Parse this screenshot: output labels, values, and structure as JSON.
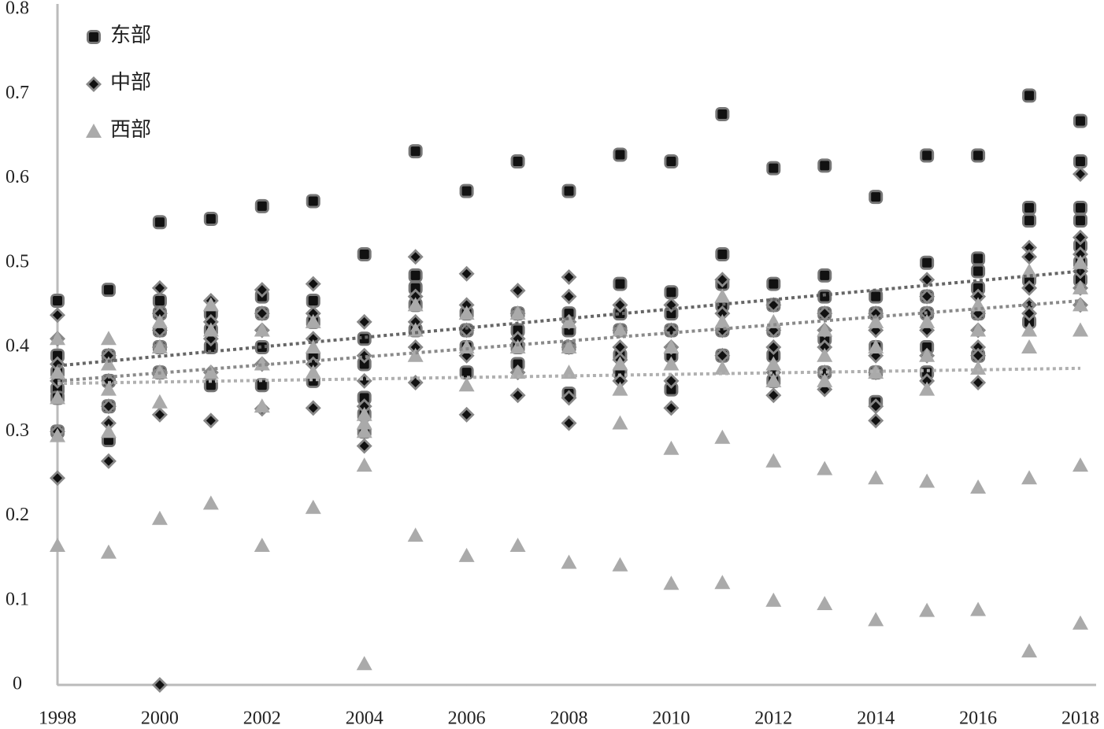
{
  "chart_data": {
    "type": "scatter",
    "xlim": [
      1998,
      2018
    ],
    "xticks": [
      1998,
      2000,
      2002,
      2004,
      2006,
      2008,
      2010,
      2012,
      2014,
      2016,
      2018
    ],
    "ylim": [
      0,
      0.8
    ],
    "yticks": [
      0,
      0.1,
      0.2,
      0.3,
      0.4,
      0.5,
      0.6,
      0.7,
      0.8
    ],
    "legend": "top-left",
    "series": [
      {
        "name": "东部",
        "color": "#111111",
        "marker": "square",
        "trendline": [
          0.378,
          0.49
        ],
        "x": [
          1998,
          1998,
          1998,
          1998,
          1998,
          1998,
          1999,
          1999,
          1999,
          1999,
          1999,
          2000,
          2000,
          2000,
          2000,
          2000,
          2000,
          2001,
          2001,
          2001,
          2001,
          2001,
          2002,
          2002,
          2002,
          2002,
          2002,
          2003,
          2003,
          2003,
          2003,
          2003,
          2004,
          2004,
          2004,
          2004,
          2004,
          2004,
          2005,
          2005,
          2005,
          2005,
          2005,
          2006,
          2006,
          2006,
          2006,
          2006,
          2007,
          2007,
          2007,
          2007,
          2007,
          2008,
          2008,
          2008,
          2008,
          2008,
          2009,
          2009,
          2009,
          2009,
          2009,
          2009,
          2010,
          2010,
          2010,
          2010,
          2010,
          2010,
          2011,
          2011,
          2011,
          2011,
          2011,
          2011,
          2012,
          2012,
          2012,
          2012,
          2012,
          2012,
          2013,
          2013,
          2013,
          2013,
          2013,
          2013,
          2014,
          2014,
          2014,
          2014,
          2014,
          2014,
          2015,
          2015,
          2015,
          2015,
          2015,
          2015,
          2016,
          2016,
          2016,
          2016,
          2016,
          2016,
          2017,
          2017,
          2017,
          2017,
          2017,
          2018,
          2018,
          2018,
          2018,
          2018,
          2018,
          2018
        ],
        "values": [
          0.455,
          0.39,
          0.37,
          0.35,
          0.34,
          0.3,
          0.468,
          0.39,
          0.36,
          0.33,
          0.29,
          0.548,
          0.455,
          0.44,
          0.42,
          0.4,
          0.37,
          0.552,
          0.44,
          0.42,
          0.4,
          0.355,
          0.567,
          0.46,
          0.44,
          0.4,
          0.355,
          0.573,
          0.455,
          0.43,
          0.39,
          0.36,
          0.51,
          0.41,
          0.38,
          0.34,
          0.32,
          0.3,
          0.632,
          0.485,
          0.47,
          0.45,
          0.42,
          0.585,
          0.44,
          0.42,
          0.4,
          0.37,
          0.62,
          0.44,
          0.42,
          0.4,
          0.38,
          0.585,
          0.44,
          0.42,
          0.4,
          0.345,
          0.628,
          0.475,
          0.44,
          0.42,
          0.39,
          0.37,
          0.62,
          0.465,
          0.44,
          0.42,
          0.39,
          0.35,
          0.676,
          0.51,
          0.475,
          0.45,
          0.42,
          0.39,
          0.612,
          0.475,
          0.45,
          0.42,
          0.39,
          0.36,
          0.615,
          0.485,
          0.46,
          0.44,
          0.41,
          0.37,
          0.578,
          0.46,
          0.44,
          0.4,
          0.37,
          0.335,
          0.627,
          0.5,
          0.46,
          0.44,
          0.4,
          0.37,
          0.627,
          0.505,
          0.49,
          0.47,
          0.44,
          0.39,
          0.698,
          0.565,
          0.55,
          0.48,
          0.43,
          0.668,
          0.62,
          0.565,
          0.55,
          0.52,
          0.5,
          0.48
        ]
      },
      {
        "name": "中部",
        "color": "#111111",
        "marker": "diamond",
        "trendline": [
          0.36,
          0.455
        ],
        "x": [
          1998,
          1998,
          1998,
          1998,
          1998,
          1998,
          1999,
          1999,
          1999,
          1999,
          1999,
          2000,
          2000,
          2000,
          2000,
          2000,
          2000,
          2000,
          2001,
          2001,
          2001,
          2001,
          2001,
          2002,
          2002,
          2002,
          2002,
          2002,
          2003,
          2003,
          2003,
          2003,
          2003,
          2004,
          2004,
          2004,
          2004,
          2004,
          2005,
          2005,
          2005,
          2005,
          2005,
          2006,
          2006,
          2006,
          2006,
          2006,
          2007,
          2007,
          2007,
          2007,
          2007,
          2008,
          2008,
          2008,
          2008,
          2008,
          2008,
          2009,
          2009,
          2009,
          2009,
          2009,
          2010,
          2010,
          2010,
          2010,
          2010,
          2011,
          2011,
          2011,
          2011,
          2012,
          2012,
          2012,
          2012,
          2012,
          2013,
          2013,
          2013,
          2013,
          2013,
          2014,
          2014,
          2014,
          2014,
          2014,
          2014,
          2015,
          2015,
          2015,
          2015,
          2015,
          2015,
          2016,
          2016,
          2016,
          2016,
          2016,
          2016,
          2017,
          2017,
          2017,
          2017,
          2017,
          2018,
          2018,
          2018,
          2018,
          2018,
          2018
        ],
        "values": [
          0.438,
          0.41,
          0.38,
          0.36,
          0.3,
          0.245,
          0.39,
          0.36,
          0.33,
          0.31,
          0.265,
          0.47,
          0.44,
          0.42,
          0.4,
          0.37,
          0.32,
          0,
          0.455,
          0.43,
          0.41,
          0.37,
          0.313,
          0.468,
          0.44,
          0.42,
          0.38,
          0.327,
          0.475,
          0.44,
          0.41,
          0.38,
          0.328,
          0.43,
          0.39,
          0.36,
          0.33,
          0.283,
          0.507,
          0.46,
          0.43,
          0.4,
          0.358,
          0.487,
          0.45,
          0.42,
          0.39,
          0.32,
          0.467,
          0.44,
          0.41,
          0.37,
          0.343,
          0.483,
          0.46,
          0.43,
          0.4,
          0.34,
          0.31,
          0.45,
          0.42,
          0.4,
          0.385,
          0.36,
          0.45,
          0.42,
          0.4,
          0.36,
          0.328,
          0.48,
          0.44,
          0.42,
          0.39,
          0.45,
          0.42,
          0.4,
          0.37,
          0.343,
          0.44,
          0.42,
          0.4,
          0.37,
          0.35,
          0.44,
          0.42,
          0.39,
          0.37,
          0.33,
          0.313,
          0.48,
          0.46,
          0.44,
          0.42,
          0.39,
          0.36,
          0.46,
          0.44,
          0.42,
          0.4,
          0.39,
          0.358,
          0.518,
          0.507,
          0.47,
          0.45,
          0.44,
          0.605,
          0.53,
          0.51,
          0.49,
          0.47,
          0.45
        ]
      },
      {
        "name": "西部",
        "color": "#aaaaaa",
        "marker": "triangle",
        "trendline": [
          0.357,
          0.375
        ],
        "x": [
          1998,
          1998,
          1998,
          1998,
          1998,
          1999,
          1999,
          1999,
          1999,
          1999,
          2000,
          2000,
          2000,
          2000,
          2000,
          2001,
          2001,
          2001,
          2001,
          2002,
          2002,
          2002,
          2002,
          2003,
          2003,
          2003,
          2003,
          2004,
          2004,
          2004,
          2004,
          2004,
          2005,
          2005,
          2005,
          2005,
          2006,
          2006,
          2006,
          2006,
          2007,
          2007,
          2007,
          2007,
          2008,
          2008,
          2008,
          2008,
          2009,
          2009,
          2009,
          2009,
          2009,
          2010,
          2010,
          2010,
          2010,
          2011,
          2011,
          2011,
          2011,
          2011,
          2012,
          2012,
          2012,
          2012,
          2012,
          2013,
          2013,
          2013,
          2013,
          2013,
          2014,
          2014,
          2014,
          2014,
          2014,
          2015,
          2015,
          2015,
          2015,
          2015,
          2016,
          2016,
          2016,
          2016,
          2016,
          2017,
          2017,
          2017,
          2017,
          2017,
          2018,
          2018,
          2018,
          2018,
          2018,
          2018
        ],
        "values": [
          0.41,
          0.37,
          0.34,
          0.295,
          0.165,
          0.41,
          0.38,
          0.35,
          0.3,
          0.157,
          0.43,
          0.4,
          0.37,
          0.335,
          0.197,
          0.45,
          0.42,
          0.37,
          0.215,
          0.42,
          0.38,
          0.33,
          0.165,
          0.43,
          0.4,
          0.37,
          0.21,
          0.32,
          0.31,
          0.3,
          0.26,
          0.025,
          0.45,
          0.42,
          0.39,
          0.177,
          0.44,
          0.4,
          0.355,
          0.153,
          0.44,
          0.4,
          0.37,
          0.165,
          0.43,
          0.4,
          0.37,
          0.145,
          0.42,
          0.38,
          0.35,
          0.31,
          0.142,
          0.4,
          0.38,
          0.28,
          0.12,
          0.46,
          0.43,
          0.375,
          0.293,
          0.121,
          0.43,
          0.38,
          0.36,
          0.265,
          0.1,
          0.42,
          0.39,
          0.36,
          0.256,
          0.096,
          0.43,
          0.4,
          0.37,
          0.245,
          0.077,
          0.43,
          0.39,
          0.35,
          0.241,
          0.088,
          0.45,
          0.42,
          0.375,
          0.234,
          0.089,
          0.49,
          0.42,
          0.4,
          0.245,
          0.04,
          0.5,
          0.47,
          0.45,
          0.42,
          0.26,
          0.073
        ]
      }
    ]
  }
}
